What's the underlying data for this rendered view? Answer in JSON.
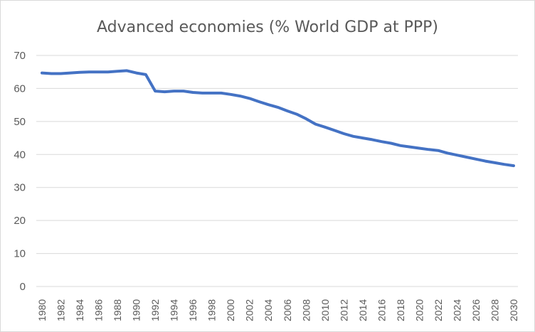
{
  "chart_data": {
    "type": "line",
    "title": "Advanced economies (% World GDP at PPP)",
    "xlabel": "",
    "ylabel": "",
    "ylim": [
      0,
      70
    ],
    "yticks": [
      0,
      10,
      20,
      30,
      40,
      50,
      60,
      70
    ],
    "grid": true,
    "legend": "none",
    "xtick_labels": [
      "1980",
      "1982",
      "1984",
      "1986",
      "1988",
      "1990",
      "1992",
      "1994",
      "1996",
      "1998",
      "2000",
      "2002",
      "2004",
      "2006",
      "2008",
      "2010",
      "2012",
      "2014",
      "2016",
      "2018",
      "2020",
      "2022",
      "2024",
      "2026",
      "2028",
      "2030"
    ],
    "x": [
      1980,
      1981,
      1982,
      1983,
      1984,
      1985,
      1986,
      1987,
      1988,
      1989,
      1990,
      1991,
      1992,
      1993,
      1994,
      1995,
      1996,
      1997,
      1998,
      1999,
      2000,
      2001,
      2002,
      2003,
      2004,
      2005,
      2006,
      2007,
      2008,
      2009,
      2010,
      2011,
      2012,
      2013,
      2014,
      2015,
      2016,
      2017,
      2018,
      2019,
      2020,
      2021,
      2022,
      2023,
      2024,
      2025,
      2026,
      2027,
      2028,
      2029,
      2030
    ],
    "series": [
      {
        "name": "Advanced economies",
        "color": "#4472c4",
        "values": [
          64.7,
          64.5,
          64.5,
          64.7,
          64.9,
          65.0,
          65.0,
          65.0,
          65.2,
          65.4,
          64.7,
          64.2,
          59.2,
          59.0,
          59.2,
          59.2,
          58.8,
          58.6,
          58.6,
          58.6,
          58.2,
          57.7,
          57.0,
          56.0,
          55.1,
          54.3,
          53.2,
          52.2,
          50.8,
          49.2,
          48.3,
          47.3,
          46.3,
          45.5,
          45.0,
          44.5,
          43.9,
          43.4,
          42.7,
          42.3,
          41.9,
          41.5,
          41.2,
          40.4,
          39.8,
          39.2,
          38.6,
          38.0,
          37.5,
          37.0,
          36.6
        ]
      }
    ]
  }
}
